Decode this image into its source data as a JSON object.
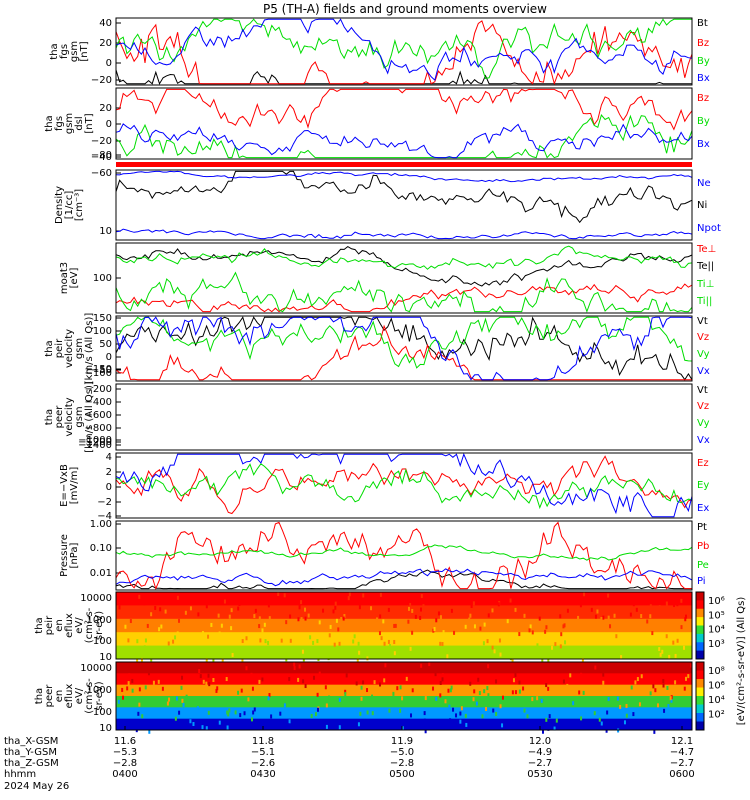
{
  "title": "P5 (TH-A) fields and ground moments overview",
  "colors": {
    "black": "#000000",
    "red": "#ff0000",
    "green": "#00dd00",
    "blue": "#0000ff",
    "frame": "#000000"
  },
  "chart_data": [
    {
      "type": "line",
      "ylabel": [
        "tha",
        "fgs",
        "gsm",
        "[nT]"
      ],
      "yticks": [
        "40",
        "20",
        "0",
        "−20"
      ],
      "ylim": [
        -30,
        45
      ],
      "series": [
        {
          "name": "Bt",
          "color": "#000000"
        },
        {
          "name": "Bz",
          "color": "#ff0000"
        },
        {
          "name": "By",
          "color": "#00dd00"
        },
        {
          "name": "Bx",
          "color": "#0000ff"
        }
      ]
    },
    {
      "type": "line",
      "ylabel": [
        "tha",
        "fgs",
        "gsm",
        "dsl",
        "[nT]"
      ],
      "yticks": [
        "20",
        "0",
        "−20",
        "−40",
        "−60",
        "−80"
      ],
      "ylim": [
        -95,
        28
      ],
      "series": [
        {
          "name": "Bz",
          "color": "#ff0000"
        },
        {
          "name": "By",
          "color": "#00dd00"
        },
        {
          "name": "Bx",
          "color": "#0000ff"
        }
      ]
    },
    {
      "type": "line",
      "ylabel": [
        "Density",
        "[1/cc]",
        "[cm⁻³]"
      ],
      "yticks": [
        "10"
      ],
      "scale": "log",
      "series": [
        {
          "name": "Ne",
          "color": "#0000ff"
        },
        {
          "name": "Ni",
          "color": "#000000"
        },
        {
          "name": "Npot",
          "color": "#0000ff"
        }
      ]
    },
    {
      "type": "line",
      "ylabel": [
        "moat3",
        "[eV]"
      ],
      "yticks": [
        "100"
      ],
      "scale": "log",
      "series": [
        {
          "name": "Te⊥",
          "color": "#ff0000"
        },
        {
          "name": "Te||",
          "color": "#000000"
        },
        {
          "name": "Ti⊥",
          "color": "#00dd00"
        },
        {
          "name": "Ti||",
          "color": "#00dd00"
        }
      ]
    },
    {
      "type": "line",
      "ylabel": [
        "tha",
        "peir",
        "velocity",
        "gsm",
        "[km/s (All Qs)]"
      ],
      "yticks": [
        "150",
        "100",
        "50",
        "0",
        "−50",
        "−100",
        "−150"
      ],
      "ylim": [
        -160,
        170
      ],
      "series": [
        {
          "name": "Vt",
          "color": "#000000"
        },
        {
          "name": "Vz",
          "color": "#ff0000"
        },
        {
          "name": "Vy",
          "color": "#00dd00"
        },
        {
          "name": "Vx",
          "color": "#0000ff"
        }
      ]
    },
    {
      "type": "line",
      "ylabel": [
        "tha",
        "peer",
        "velocity",
        "gsm",
        "[km/s (All Qs)]"
      ],
      "yticks": [
        "−200",
        "−400",
        "−600",
        "−800",
        "−1000",
        "−1200",
        "−1400"
      ],
      "series": [
        {
          "name": "Vt",
          "color": "#000000"
        },
        {
          "name": "Vz",
          "color": "#ff0000"
        },
        {
          "name": "Vy",
          "color": "#00dd00"
        },
        {
          "name": "Vx",
          "color": "#0000ff"
        }
      ]
    },
    {
      "type": "line",
      "ylabel": [
        "E=−VxB",
        "[mV/m]"
      ],
      "yticks": [
        "4",
        "2",
        "0",
        "−2",
        "−4"
      ],
      "ylim": [
        -4.5,
        4.5
      ],
      "series": [
        {
          "name": "Ez",
          "color": "#ff0000"
        },
        {
          "name": "Ey",
          "color": "#00dd00"
        },
        {
          "name": "Ex",
          "color": "#0000ff"
        }
      ]
    },
    {
      "type": "line",
      "ylabel": [
        "Pressure",
        "[nPa]"
      ],
      "yticks": [
        "1.00",
        "0.10",
        "0.01"
      ],
      "scale": "log",
      "series": [
        {
          "name": "Pt",
          "color": "#000000"
        },
        {
          "name": "Pb",
          "color": "#ff0000"
        },
        {
          "name": "Pe",
          "color": "#00dd00"
        },
        {
          "name": "Pi",
          "color": "#0000ff"
        }
      ]
    },
    {
      "type": "heatmap",
      "ylabel": [
        "tha",
        "peir",
        "en",
        "eflux",
        "eV/",
        "(cm²-s-",
        "sr-eV)"
      ],
      "yticks": [
        "10000",
        "1000",
        "100",
        "10"
      ],
      "scale": "log",
      "colorbar": {
        "label": "[eV/(cm²-s-sr-eV)] (All Qs)",
        "ticks": [
          "10⁶",
          "10⁵",
          "10⁴",
          "10³"
        ]
      }
    },
    {
      "type": "heatmap",
      "ylabel": [
        "tha",
        "peer",
        "en",
        "eflux",
        "eV/",
        "(cm²-s-",
        "sr-eV)"
      ],
      "yticks": [
        "10000",
        "1000",
        "100",
        "10"
      ],
      "scale": "log",
      "colorbar": {
        "label": "[eV/(cm²-s-sr-eV)] (All Qs)",
        "ticks": [
          "10⁸",
          "10⁶",
          "10⁴",
          "10²"
        ]
      }
    }
  ],
  "xaxis": {
    "rows": [
      {
        "label": "tha_X-GSM",
        "values": [
          "11.6",
          "11.8",
          "11.9",
          "12.0",
          "12.1"
        ]
      },
      {
        "label": "tha_Y-GSM",
        "values": [
          "−5.3",
          "−5.1",
          "−5.0",
          "−4.9",
          "−4.7"
        ]
      },
      {
        "label": "tha_Z-GSM",
        "values": [
          "−2.8",
          "−2.6",
          "−2.8",
          "−2.7",
          "−2.7"
        ]
      },
      {
        "label": "hhmm",
        "values": [
          "0400",
          "0430",
          "0500",
          "0530",
          "0600"
        ]
      }
    ],
    "date": "2024 May 26"
  }
}
